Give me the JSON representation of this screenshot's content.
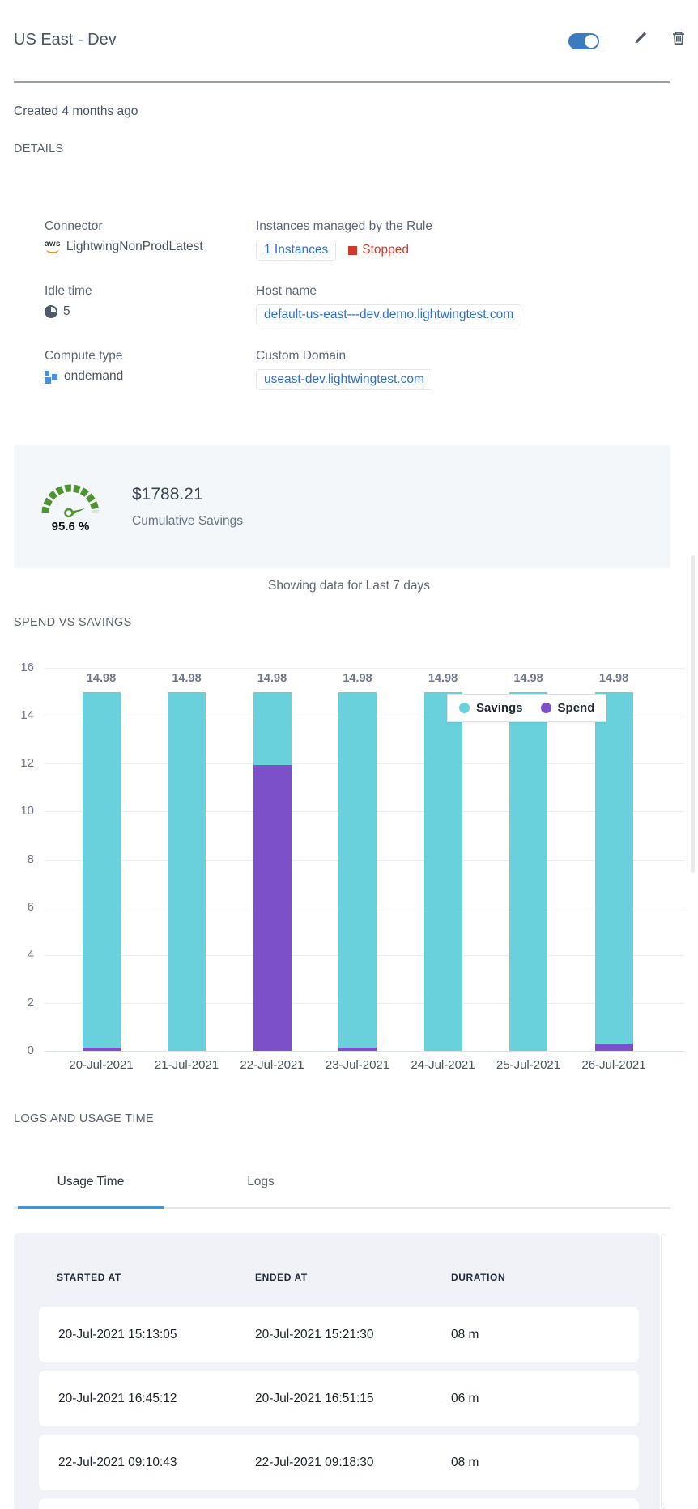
{
  "header": {
    "title": "US East - Dev",
    "created": "Created 4 months ago",
    "details_label": "DETAILS",
    "toggle_state": "on"
  },
  "details": {
    "connector": {
      "label": "Connector",
      "value": "LightwingNonProdLatest"
    },
    "instances": {
      "label": "Instances managed by the Rule",
      "link_text": "1 Instances",
      "status": "Stopped"
    },
    "idle": {
      "label": "Idle time",
      "value": "5"
    },
    "host": {
      "label": "Host name",
      "value": "default-us-east---dev.demo.lightwingtest.com"
    },
    "compute": {
      "label": "Compute type",
      "value": "ondemand"
    },
    "domain": {
      "label": "Custom Domain",
      "value": "useast-dev.lightwingtest.com"
    }
  },
  "savings": {
    "percent": "95.6 %",
    "amount": "$1788.21",
    "caption": "Cumulative Savings"
  },
  "period_note": "Showing data for Last 7 days",
  "sections": {
    "spend_vs_savings": "SPEND VS SAVINGS",
    "logs_usage": "LOGS AND USAGE TIME"
  },
  "chart_data": {
    "type": "bar",
    "stacked": true,
    "title": "SPEND VS SAVINGS",
    "categories": [
      "20-Jul-2021",
      "21-Jul-2021",
      "22-Jul-2021",
      "23-Jul-2021",
      "24-Jul-2021",
      "25-Jul-2021",
      "26-Jul-2021"
    ],
    "series": [
      {
        "name": "Savings",
        "color": "#68d1dc",
        "values": [
          14.83,
          14.98,
          3.03,
          14.86,
          14.98,
          14.98,
          14.68
        ]
      },
      {
        "name": "Spend",
        "color": "#7b50c8",
        "values": [
          0.15,
          0,
          11.95,
          0.12,
          0,
          0,
          0.3
        ]
      }
    ],
    "bar_total_labels": [
      "14.98",
      "14.98",
      "14.98",
      "14.98",
      "14.98",
      "14.98",
      "14.98"
    ],
    "ylim": [
      0,
      16
    ],
    "ytick_step": 2,
    "grid": true,
    "legend_position": "top-right-overlay"
  },
  "logs_tabs": {
    "items": [
      "Usage Time",
      "Logs"
    ],
    "active": "Usage Time"
  },
  "usage_table": {
    "columns": [
      "STARTED AT",
      "ENDED AT",
      "DURATION"
    ],
    "rows": [
      [
        "20-Jul-2021 15:13:05",
        "20-Jul-2021 15:21:30",
        "08 m"
      ],
      [
        "20-Jul-2021 16:45:12",
        "20-Jul-2021 16:51:15",
        "06 m"
      ],
      [
        "22-Jul-2021 09:10:43",
        "22-Jul-2021 09:18:30",
        "08 m"
      ],
      [
        "",
        "",
        ""
      ]
    ]
  },
  "icons": {
    "header": [
      "toggle-on-icon",
      "pencil-icon",
      "trash-icon"
    ],
    "connector": "aws-logo-icon",
    "instances_status": "stopped-square-icon",
    "idle": "clock-icon",
    "compute": "compute-squares-icon",
    "savings": "gauge-icon"
  },
  "colors": {
    "accent_blue": "#4a90d9",
    "link_blue": "#2e6fd8",
    "toggle_blue": "#3a7cbf",
    "status_red": "#ce3b2b",
    "savings_teal": "#68d1dc",
    "spend_purple": "#7b50c8",
    "gauge_green": "#4f9431"
  }
}
